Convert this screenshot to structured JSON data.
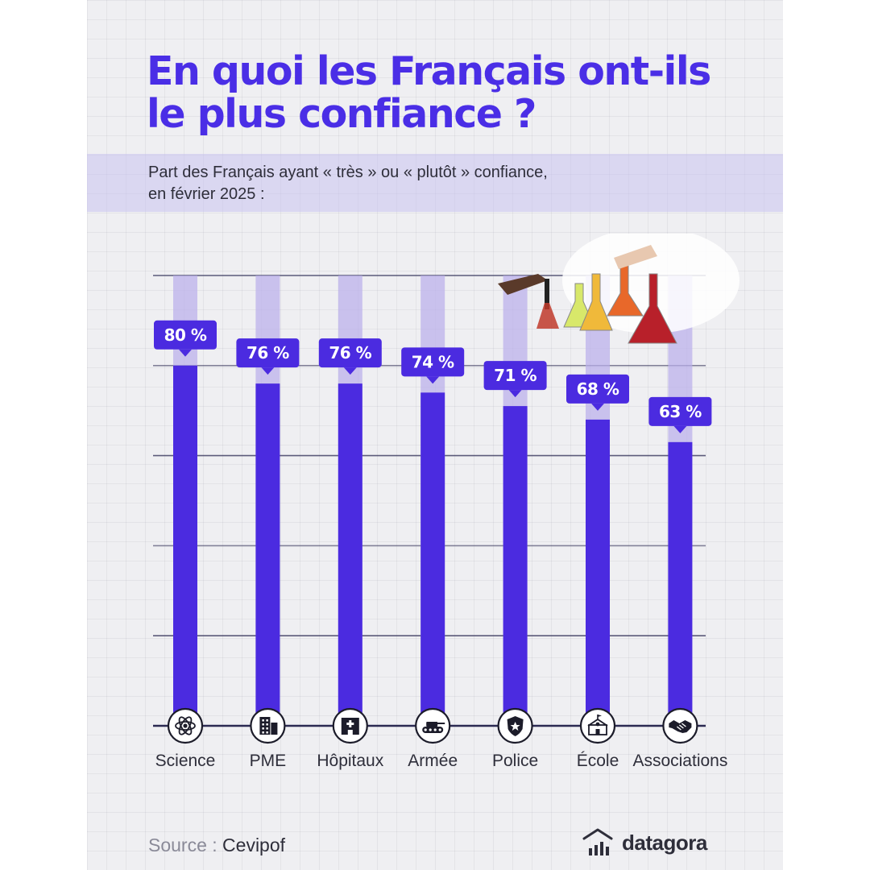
{
  "title_line1": "En quoi les Français ont-ils",
  "title_line2": "le plus confiance ?",
  "subtitle_line1": "Part des Français ayant « très » ou « plutôt » confiance,",
  "subtitle_line2": "en février 2025 :",
  "source_label": "Source :",
  "source_name": "Cevipof",
  "brand": "datagora",
  "colors": {
    "bar": "#4b2be0",
    "track": "#b9aeeb",
    "grid": "#2b2a52",
    "accent_text": "#4a2ee6"
  },
  "chart_data": {
    "type": "bar",
    "title": "En quoi les Français ont-ils le plus confiance ?",
    "categories": [
      "Science",
      "PME",
      "Hôpitaux",
      "Armée",
      "Police",
      "École",
      "Associations"
    ],
    "values": [
      80,
      76,
      76,
      74,
      71,
      68,
      63
    ],
    "value_labels": [
      "80 %",
      "76 %",
      "76 %",
      "74 %",
      "71 %",
      "68 %",
      "63 %"
    ],
    "icons": [
      "atom-icon",
      "office-building-icon",
      "hospital-icon",
      "tank-icon",
      "police-badge-icon",
      "school-icon",
      "handshake-icon"
    ],
    "ylim": [
      0,
      100
    ],
    "grid": true,
    "xlabel": "",
    "ylabel": ""
  }
}
